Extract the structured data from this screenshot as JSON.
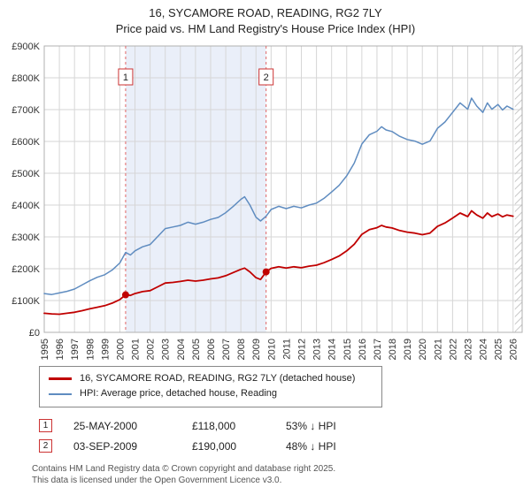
{
  "title": "16, SYCAMORE ROAD, READING, RG2 7LY",
  "subtitle": "Price paid vs. HM Land Registry's House Price Index (HPI)",
  "colors": {
    "property": "#c00000",
    "hpi": "#5f8cc0",
    "band": "#eaeff9",
    "grid": "#d6d6d6",
    "dashed": "#e06666",
    "frame": "#b0b0b0"
  },
  "legend": [
    {
      "label": "16, SYCAMORE ROAD, READING, RG2 7LY (detached house)",
      "color": "#c00000"
    },
    {
      "label": "HPI: Average price, detached house, Reading",
      "color": "#5f8cc0"
    }
  ],
  "sales": [
    {
      "num": "1",
      "date": "25-MAY-2000",
      "price": "£118,000",
      "hpi_diff": "53% ↓ HPI",
      "x": 2000.38,
      "value_k": 118
    },
    {
      "num": "2",
      "date": "03-SEP-2009",
      "price": "£190,000",
      "hpi_diff": "48% ↓ HPI",
      "x": 2009.67,
      "value_k": 190
    }
  ],
  "footer": [
    "Contains HM Land Registry data © Crown copyright and database right 2025.",
    "This data is licensed under the Open Government Licence v3.0."
  ],
  "chart_data": {
    "type": "line",
    "title": "16, SYCAMORE ROAD, READING, RG2 7LY — Price paid vs. HPI",
    "xlim": [
      1995,
      2026.6
    ],
    "ylim": [
      0,
      900
    ],
    "x_ticks": [
      1995,
      1996,
      1997,
      1998,
      1999,
      2000,
      2001,
      2002,
      2003,
      2004,
      2005,
      2006,
      2007,
      2008,
      2009,
      2010,
      2011,
      2012,
      2013,
      2014,
      2015,
      2016,
      2017,
      2018,
      2019,
      2020,
      2021,
      2022,
      2023,
      2024,
      2025,
      2026
    ],
    "y_ticks": [
      "£0",
      "£100K",
      "£200K",
      "£300K",
      "£400K",
      "£500K",
      "£600K",
      "£700K",
      "£800K",
      "£900K"
    ],
    "y_unit": "thousand GBP",
    "series": [
      {
        "name": "16, SYCAMORE ROAD, READING, RG2 7LY (detached house)",
        "color": "#c00000",
        "points": [
          [
            1995,
            60
          ],
          [
            1995.5,
            58
          ],
          [
            1996,
            57
          ],
          [
            1996.5,
            60
          ],
          [
            1997,
            63
          ],
          [
            1997.5,
            68
          ],
          [
            1998,
            74
          ],
          [
            1998.5,
            79
          ],
          [
            1999,
            84
          ],
          [
            1999.5,
            92
          ],
          [
            2000,
            103
          ],
          [
            2000.38,
            118
          ],
          [
            2000.7,
            116
          ],
          [
            2001,
            122
          ],
          [
            2001.5,
            128
          ],
          [
            2002,
            131
          ],
          [
            2002.5,
            143
          ],
          [
            2003,
            155
          ],
          [
            2003.5,
            157
          ],
          [
            2004,
            160
          ],
          [
            2004.5,
            164
          ],
          [
            2005,
            161
          ],
          [
            2005.5,
            164
          ],
          [
            2006,
            168
          ],
          [
            2006.5,
            171
          ],
          [
            2007,
            178
          ],
          [
            2007.5,
            188
          ],
          [
            2008,
            198
          ],
          [
            2008.25,
            202
          ],
          [
            2008.6,
            190
          ],
          [
            2009,
            172
          ],
          [
            2009.3,
            166
          ],
          [
            2009.67,
            190
          ],
          [
            2010,
            201
          ],
          [
            2010.5,
            206
          ],
          [
            2011,
            202
          ],
          [
            2011.5,
            206
          ],
          [
            2012,
            203
          ],
          [
            2012.5,
            208
          ],
          [
            2013,
            211
          ],
          [
            2013.5,
            219
          ],
          [
            2014,
            229
          ],
          [
            2014.5,
            240
          ],
          [
            2015,
            256
          ],
          [
            2015.5,
            277
          ],
          [
            2016,
            308
          ],
          [
            2016.5,
            323
          ],
          [
            2017,
            329
          ],
          [
            2017.3,
            336
          ],
          [
            2017.6,
            331
          ],
          [
            2018,
            328
          ],
          [
            2018.5,
            320
          ],
          [
            2019,
            315
          ],
          [
            2019.5,
            312
          ],
          [
            2020,
            307
          ],
          [
            2020.5,
            312
          ],
          [
            2021,
            333
          ],
          [
            2021.5,
            344
          ],
          [
            2022,
            359
          ],
          [
            2022.5,
            375
          ],
          [
            2023,
            364
          ],
          [
            2023.25,
            382
          ],
          [
            2023.6,
            369
          ],
          [
            2024,
            359
          ],
          [
            2024.3,
            375
          ],
          [
            2024.6,
            364
          ],
          [
            2025,
            372
          ],
          [
            2025.3,
            363
          ],
          [
            2025.6,
            369
          ],
          [
            2026,
            365
          ]
        ]
      },
      {
        "name": "HPI: Average price, detached house, Reading",
        "color": "#5f8cc0",
        "points": [
          [
            1995,
            122
          ],
          [
            1995.5,
            119
          ],
          [
            1996,
            124
          ],
          [
            1996.5,
            129
          ],
          [
            1997,
            136
          ],
          [
            1997.5,
            149
          ],
          [
            1998,
            162
          ],
          [
            1998.5,
            173
          ],
          [
            1999,
            181
          ],
          [
            1999.5,
            196
          ],
          [
            2000,
            218
          ],
          [
            2000.38,
            251
          ],
          [
            2000.7,
            243
          ],
          [
            2001,
            256
          ],
          [
            2001.5,
            269
          ],
          [
            2002,
            276
          ],
          [
            2002.5,
            301
          ],
          [
            2003,
            326
          ],
          [
            2003.5,
            331
          ],
          [
            2004,
            336
          ],
          [
            2004.5,
            346
          ],
          [
            2005,
            340
          ],
          [
            2005.5,
            346
          ],
          [
            2006,
            355
          ],
          [
            2006.5,
            361
          ],
          [
            2007,
            376
          ],
          [
            2007.5,
            396
          ],
          [
            2008,
            418
          ],
          [
            2008.25,
            426
          ],
          [
            2008.6,
            400
          ],
          [
            2009,
            362
          ],
          [
            2009.3,
            350
          ],
          [
            2009.67,
            365
          ],
          [
            2010,
            386
          ],
          [
            2010.5,
            396
          ],
          [
            2011,
            389
          ],
          [
            2011.5,
            396
          ],
          [
            2012,
            391
          ],
          [
            2012.5,
            400
          ],
          [
            2013,
            406
          ],
          [
            2013.5,
            421
          ],
          [
            2014,
            441
          ],
          [
            2014.5,
            462
          ],
          [
            2015,
            492
          ],
          [
            2015.5,
            532
          ],
          [
            2016,
            592
          ],
          [
            2016.5,
            621
          ],
          [
            2017,
            632
          ],
          [
            2017.3,
            646
          ],
          [
            2017.6,
            636
          ],
          [
            2018,
            631
          ],
          [
            2018.5,
            616
          ],
          [
            2019,
            606
          ],
          [
            2019.5,
            601
          ],
          [
            2020,
            591
          ],
          [
            2020.5,
            601
          ],
          [
            2021,
            641
          ],
          [
            2021.5,
            661
          ],
          [
            2022,
            691
          ],
          [
            2022.5,
            721
          ],
          [
            2023,
            701
          ],
          [
            2023.25,
            736
          ],
          [
            2023.6,
            711
          ],
          [
            2024,
            691
          ],
          [
            2024.3,
            721
          ],
          [
            2024.6,
            701
          ],
          [
            2025,
            716
          ],
          [
            2025.3,
            699
          ],
          [
            2025.6,
            711
          ],
          [
            2026,
            701
          ]
        ]
      }
    ]
  }
}
